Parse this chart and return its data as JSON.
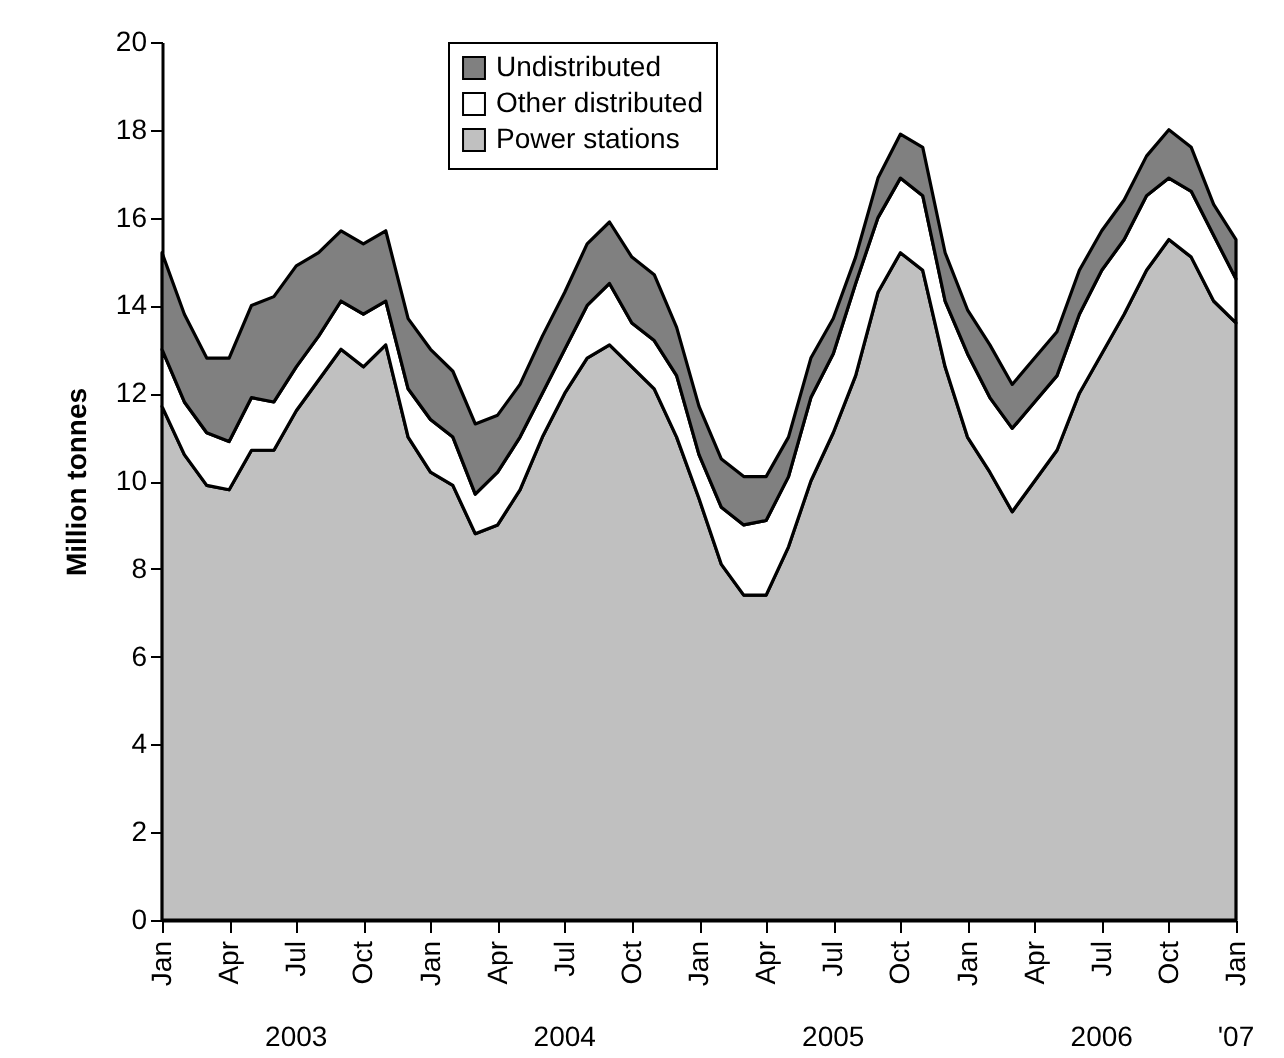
{
  "chart_data": {
    "type": "area",
    "stacked": true,
    "ylabel": "Million tonnes",
    "categories": [
      "Jan",
      null,
      null,
      "Apr",
      null,
      null,
      "Jul",
      null,
      null,
      "Oct",
      null,
      null,
      "Jan",
      null,
      null,
      "Apr",
      null,
      null,
      "Jul",
      null,
      null,
      "Oct",
      null,
      null,
      "Jan",
      null,
      null,
      "Apr",
      null,
      null,
      "Jul",
      null,
      null,
      "Oct",
      null,
      null,
      "Jan",
      null,
      null,
      "Apr",
      null,
      null,
      "Jul",
      null,
      null,
      "Oct",
      null,
      null,
      "Jan"
    ],
    "series": [
      {
        "name": "Power stations",
        "color": "#c0c0c0",
        "values": [
          11.7,
          10.6,
          9.9,
          9.8,
          10.7,
          10.7,
          11.6,
          12.3,
          13.0,
          12.6,
          13.1,
          11.0,
          10.2,
          9.9,
          8.8,
          9.0,
          9.8,
          11.0,
          12.0,
          12.8,
          13.1,
          12.6,
          12.1,
          11.0,
          9.6,
          8.1,
          7.4,
          7.4,
          8.5,
          10.0,
          11.1,
          12.4,
          14.3,
          15.2,
          14.8,
          12.6,
          11.0,
          10.2,
          9.3,
          10.0,
          10.7,
          12.0,
          12.9,
          13.8,
          14.8,
          15.5,
          15.1,
          14.1,
          13.6
        ]
      },
      {
        "name": "Other distributed",
        "color": "#ffffff",
        "values": [
          1.3,
          1.2,
          1.2,
          1.1,
          1.2,
          1.1,
          1.0,
          1.0,
          1.1,
          1.2,
          1.0,
          1.1,
          1.2,
          1.1,
          0.9,
          1.2,
          1.2,
          1.0,
          1.0,
          1.2,
          1.4,
          1.0,
          1.1,
          1.4,
          1.0,
          1.3,
          1.6,
          1.7,
          1.6,
          1.9,
          1.8,
          2.1,
          1.7,
          1.7,
          1.7,
          1.5,
          1.9,
          1.7,
          1.9,
          1.8,
          1.7,
          1.8,
          1.9,
          1.7,
          1.7,
          1.4,
          1.5,
          1.5,
          1.0
        ]
      },
      {
        "name": "Undistributed",
        "color": "#808080",
        "values": [
          2.2,
          2.0,
          1.7,
          1.9,
          2.1,
          2.4,
          2.3,
          1.9,
          1.6,
          1.6,
          1.6,
          1.6,
          1.6,
          1.5,
          1.6,
          1.3,
          1.2,
          1.3,
          1.3,
          1.4,
          1.4,
          1.5,
          1.5,
          1.1,
          1.1,
          1.1,
          1.1,
          1.0,
          0.9,
          0.9,
          0.8,
          0.6,
          0.9,
          1.0,
          1.1,
          1.1,
          1.0,
          1.2,
          1.0,
          1.0,
          1.0,
          1.0,
          0.9,
          0.9,
          0.9,
          1.1,
          1.0,
          0.7,
          0.9
        ]
      }
    ],
    "ylim": [
      0,
      20
    ],
    "yticks": [
      0,
      2,
      4,
      6,
      8,
      10,
      12,
      14,
      16,
      18,
      20
    ],
    "grid": false,
    "legend": "top",
    "annotations": [
      "2003",
      "2004",
      "2005",
      "2006",
      "'07"
    ]
  }
}
